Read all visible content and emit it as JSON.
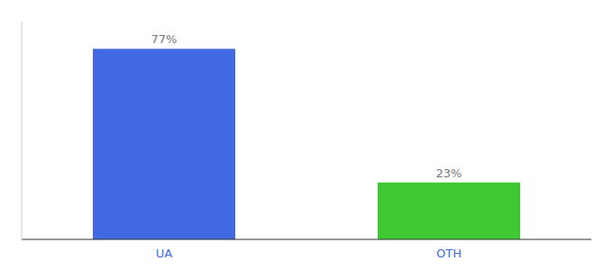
{
  "chart_data": {
    "type": "bar",
    "categories": [
      "UA",
      "OTH"
    ],
    "values": [
      77,
      23
    ],
    "value_labels": [
      "77%",
      "23%"
    ],
    "colors": [
      "#4169e1",
      "#3ec832"
    ],
    "ylim": [
      0,
      88
    ],
    "data_labels": true,
    "tick_labels": "x"
  }
}
